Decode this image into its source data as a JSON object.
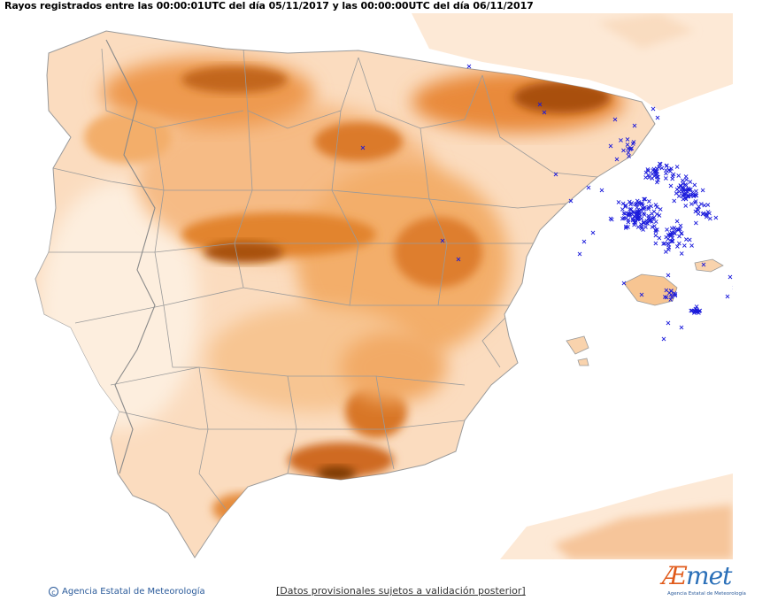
{
  "header": {
    "title": "Rayos registrados entre las 00:00:01UTC del día 05/11/2017 y las 00:00:00UTC del día 06/11/2017"
  },
  "map": {
    "region": "Iberian Peninsula and Balearic Islands",
    "lightning_marker": "×",
    "marker_color": "#1a1adb",
    "relief_colors": [
      "#fde9d6",
      "#f9c89a",
      "#f0a15a",
      "#d9741e",
      "#8a3f08"
    ]
  },
  "footer": {
    "agency": "Agencia Estatal de Meteorología",
    "disclaimer": "Datos provisionales sujetos a validación posterior"
  },
  "logo": {
    "word": "AEmet",
    "subtitle": "Agencia Estatal de Meteorología"
  }
}
